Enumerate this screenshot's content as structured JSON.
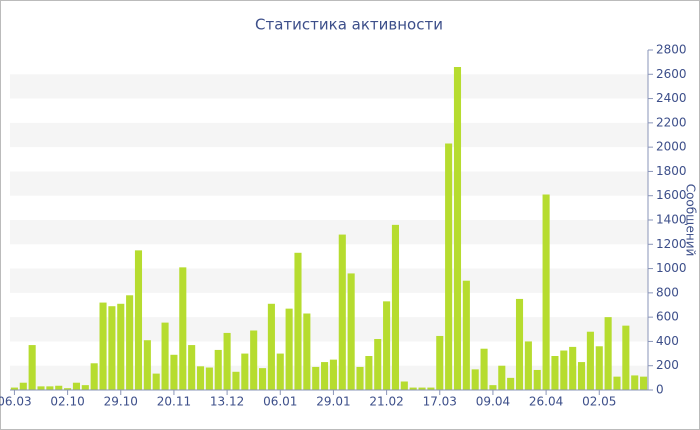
{
  "chart_data": {
    "type": "bar",
    "title": "Статистика активности",
    "y_axis_label": "Сообщений",
    "categories": [
      "06.03",
      null,
      null,
      null,
      null,
      null,
      "02.10",
      null,
      null,
      null,
      null,
      null,
      "29.10",
      null,
      null,
      null,
      null,
      null,
      "20.11",
      null,
      null,
      null,
      null,
      null,
      "13.12",
      null,
      null,
      null,
      null,
      null,
      "06.01",
      null,
      null,
      null,
      null,
      null,
      "29.01",
      null,
      null,
      null,
      null,
      null,
      "21.02",
      null,
      null,
      null,
      null,
      null,
      "17.03",
      null,
      null,
      null,
      null,
      null,
      "09.04",
      null,
      null,
      null,
      null,
      null,
      "26.04",
      null,
      null,
      null,
      null,
      null,
      "02.05",
      null,
      null,
      null,
      null,
      null
    ],
    "values": [
      20,
      60,
      370,
      30,
      30,
      35,
      15,
      60,
      40,
      220,
      720,
      690,
      710,
      780,
      1150,
      410,
      135,
      555,
      290,
      1010,
      370,
      195,
      185,
      330,
      470,
      150,
      300,
      490,
      180,
      710,
      300,
      670,
      1130,
      630,
      190,
      230,
      250,
      1280,
      960,
      190,
      280,
      420,
      730,
      1360,
      70,
      20,
      20,
      20,
      445,
      2030,
      2660,
      900,
      170,
      340,
      40,
      200,
      100,
      750,
      400,
      165,
      1610,
      280,
      325,
      355,
      230,
      480,
      360,
      600,
      110,
      530,
      120,
      110
    ],
    "color": "#b6dc2f",
    "ylim": [
      0,
      2800
    ],
    "yticks": [
      0,
      200,
      400,
      600,
      800,
      1000,
      1200,
      1400,
      1600,
      1800,
      2000,
      2200,
      2400,
      2600,
      2800
    ],
    "grid": true
  }
}
